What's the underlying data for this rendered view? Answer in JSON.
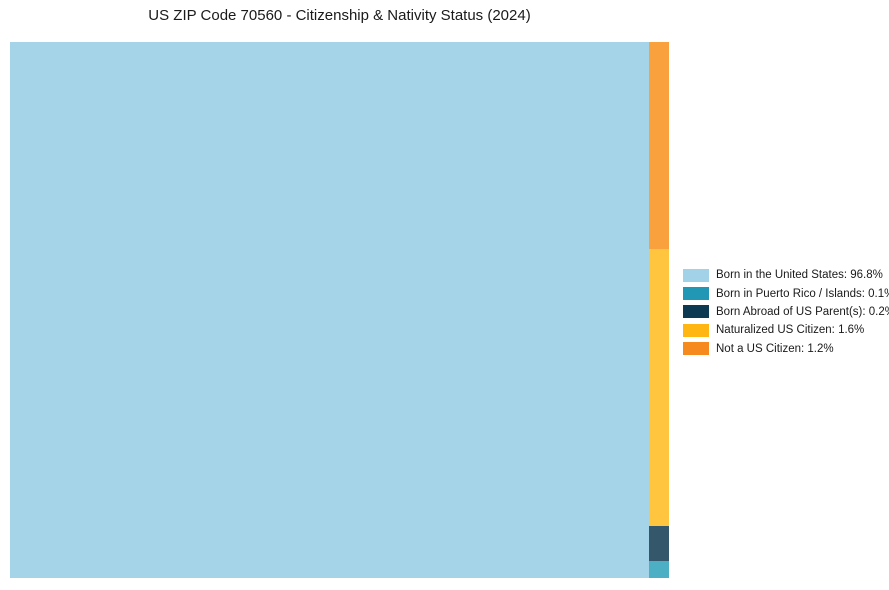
{
  "title": "US ZIP Code 70560 - Citizenship & Nativity Status (2024)",
  "legend": {
    "items": [
      {
        "label": "Born in the United States: 96.8%",
        "color": "#A2D2E8"
      },
      {
        "label": "Born in Puerto Rico / Islands: 0.1%",
        "color": "#2196B5"
      },
      {
        "label": "Born Abroad of US Parent(s): 0.2%",
        "color": "#0D3A52"
      },
      {
        "label": "Naturalized US Citizen: 1.6%",
        "color": "#FFB612"
      },
      {
        "label": "Not a US Citizen: 1.2%",
        "color": "#F68A1F"
      }
    ]
  },
  "chart_data": {
    "type": "treemap",
    "title": "US ZIP Code 70560 - Citizenship & Nativity Status (2024)",
    "unit": "percent",
    "categories": [
      "Born in the United States",
      "Born in Puerto Rico / Islands",
      "Born Abroad of US Parent(s)",
      "Naturalized US Citizen",
      "Not a US Citizen"
    ],
    "values": [
      96.8,
      0.1,
      0.2,
      1.6,
      1.2
    ],
    "main": {
      "label": "Born in the United States",
      "value": 96.8,
      "color": "#A5D3E8"
    },
    "column": [
      {
        "label": "Not a US Citizen",
        "value": 1.2,
        "color": "#F9A13C"
      },
      {
        "label": "Naturalized US Citizen",
        "value": 1.6,
        "color": "#FFC53F"
      },
      {
        "label": "Born Abroad of US Parent(s)",
        "value": 0.2,
        "color": "#35576B"
      },
      {
        "label": "Born in Puerto Rico / Islands",
        "value": 0.1,
        "color": "#4DAFC4"
      }
    ],
    "legend_position": "right",
    "grid": false
  }
}
